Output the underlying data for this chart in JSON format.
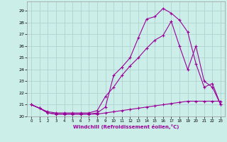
{
  "xlabel": "Windchill (Refroidissement éolien,°C)",
  "bg_color": "#cceee8",
  "grid_color": "#aacccc",
  "line_color": "#990099",
  "xlim": [
    -0.5,
    23.5
  ],
  "ylim": [
    20.0,
    29.8
  ],
  "xticks": [
    0,
    1,
    2,
    3,
    4,
    5,
    6,
    7,
    8,
    9,
    10,
    11,
    12,
    13,
    14,
    15,
    16,
    17,
    18,
    19,
    20,
    21,
    22,
    23
  ],
  "yticks": [
    20,
    21,
    22,
    23,
    24,
    25,
    26,
    27,
    28,
    29
  ],
  "line1_x": [
    0,
    1,
    2,
    3,
    4,
    5,
    6,
    7,
    8,
    9,
    10,
    11,
    12,
    13,
    14,
    15,
    16,
    17,
    18,
    19,
    20,
    21,
    22,
    23
  ],
  "line1_y": [
    21.0,
    20.7,
    20.3,
    20.2,
    20.2,
    20.2,
    20.2,
    20.2,
    20.2,
    20.3,
    20.4,
    20.5,
    20.6,
    20.7,
    20.8,
    20.9,
    21.0,
    21.1,
    21.2,
    21.3,
    21.3,
    21.3,
    21.3,
    21.3
  ],
  "line2_x": [
    0,
    1,
    2,
    3,
    4,
    5,
    6,
    7,
    8,
    9,
    10,
    11,
    12,
    13,
    14,
    15,
    16,
    17,
    18,
    19,
    20,
    21,
    22,
    23
  ],
  "line2_y": [
    21.0,
    20.7,
    20.4,
    20.3,
    20.3,
    20.3,
    20.3,
    20.3,
    20.5,
    21.7,
    22.5,
    23.5,
    24.3,
    25.0,
    25.8,
    26.5,
    26.9,
    28.1,
    26.0,
    24.0,
    26.0,
    23.0,
    22.5,
    21.0
  ],
  "line3_x": [
    0,
    1,
    2,
    3,
    4,
    5,
    6,
    7,
    8,
    9,
    10,
    11,
    12,
    13,
    14,
    15,
    16,
    17,
    18,
    19,
    20,
    21,
    22,
    23
  ],
  "line3_y": [
    21.0,
    20.7,
    20.3,
    20.2,
    20.2,
    20.2,
    20.2,
    20.2,
    20.3,
    20.8,
    23.5,
    24.2,
    25.0,
    26.7,
    28.3,
    28.5,
    29.2,
    28.8,
    28.2,
    27.2,
    24.5,
    22.5,
    22.8,
    21.0
  ]
}
